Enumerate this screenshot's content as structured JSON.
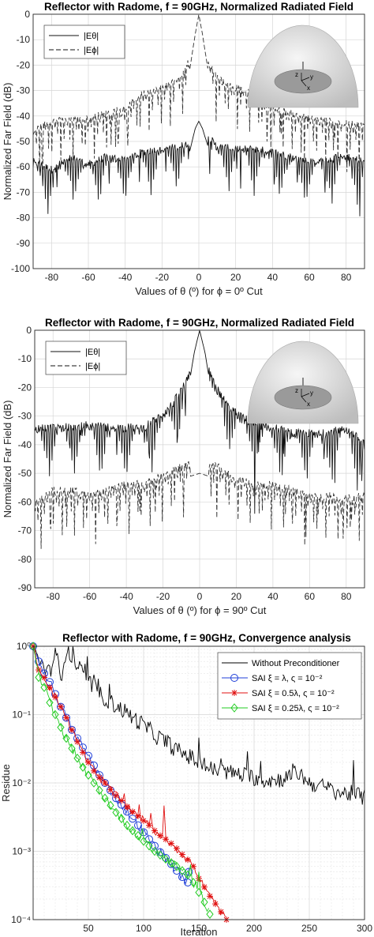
{
  "chart_data": [
    {
      "type": "line",
      "title": "Reflector with Radome, f = 90GHz, Normalized Radiated Field",
      "xlabel": "Values of θ (º) for ϕ = 0º Cut",
      "ylabel": "Normalized Far Field (dB)",
      "xlim": [
        -90,
        90
      ],
      "ylim": [
        -100,
        0
      ],
      "xticks": [
        -80,
        -60,
        -40,
        -20,
        0,
        20,
        40,
        60,
        80
      ],
      "yticks": [
        0,
        -10,
        -20,
        -30,
        -40,
        -50,
        -60,
        -70,
        -80,
        -90,
        -100
      ],
      "grid": true,
      "legend_position": "top-left",
      "inset": {
        "labels": [
          "z",
          "y",
          "x"
        ]
      },
      "series": [
        {
          "name": "|Eθ|",
          "style": "solid",
          "x": [
            -90,
            -80,
            -70,
            -60,
            -50,
            -40,
            -30,
            -20,
            -10,
            -5,
            -2,
            0,
            2,
            5,
            10,
            20,
            30,
            40,
            50,
            60,
            70,
            80,
            90
          ],
          "y": [
            -62,
            -65,
            -60,
            -63,
            -60,
            -61,
            -58,
            -57,
            -56,
            -54,
            -45,
            -42,
            -45,
            -52,
            -56,
            -57,
            -57,
            -58,
            -60,
            -62,
            -61,
            -60,
            -62
          ]
        },
        {
          "name": "|Eϕ|",
          "style": "dashed",
          "x": [
            -90,
            -80,
            -70,
            -60,
            -50,
            -40,
            -30,
            -20,
            -10,
            -5,
            -2,
            0,
            2,
            5,
            10,
            20,
            30,
            40,
            50,
            60,
            70,
            80,
            90
          ],
          "y": [
            -50,
            -46,
            -46,
            -45,
            -43,
            -41,
            -35,
            -33,
            -29,
            -22,
            -8,
            0,
            -8,
            -22,
            -29,
            -33,
            -36,
            -41,
            -43,
            -45,
            -46,
            -47,
            -48
          ]
        }
      ]
    },
    {
      "type": "line",
      "title": "Reflector with Radome, f = 90GHz, Normalized Radiated Field",
      "xlabel": "Values of θ (º) for ϕ = 90º Cut",
      "ylabel": "Normalized Far Field (dB)",
      "xlim": [
        -90,
        90
      ],
      "ylim": [
        -90,
        0
      ],
      "xticks": [
        -80,
        -60,
        -40,
        -20,
        0,
        20,
        40,
        60,
        80
      ],
      "yticks": [
        0,
        -10,
        -20,
        -30,
        -40,
        -50,
        -60,
        -70,
        -80,
        -90
      ],
      "grid": true,
      "legend_position": "top-left",
      "inset": {
        "labels": [
          "z",
          "y",
          "x"
        ]
      },
      "series": [
        {
          "name": "|Eθ|",
          "style": "solid",
          "x": [
            -90,
            -80,
            -70,
            -60,
            -50,
            -40,
            -30,
            -20,
            -15,
            -10,
            -6,
            -3,
            0,
            3,
            6,
            10,
            15,
            20,
            30,
            40,
            50,
            60,
            70,
            80,
            90
          ],
          "y": [
            -38,
            -38,
            -38,
            -37,
            -38,
            -38,
            -38,
            -33,
            -30,
            -25,
            -20,
            -8,
            0,
            -8,
            -20,
            -25,
            -30,
            -33,
            -37,
            -38,
            -40,
            -40,
            -40,
            -38,
            -44
          ]
        },
        {
          "name": "|Eϕ|",
          "style": "dashed",
          "x": [
            -90,
            -80,
            -70,
            -60,
            -50,
            -40,
            -30,
            -20,
            -10,
            0,
            10,
            20,
            30,
            40,
            50,
            60,
            70,
            80,
            90
          ],
          "y": [
            -65,
            -60,
            -60,
            -62,
            -60,
            -58,
            -58,
            -55,
            -52,
            -50,
            -52,
            -56,
            -58,
            -58,
            -60,
            -62,
            -62,
            -63,
            -62
          ]
        }
      ]
    },
    {
      "type": "line",
      "title": "Reflector with Radome, f = 90GHz, Convergence analysis",
      "xlabel": "Iteration",
      "ylabel": "Residue",
      "log_y": true,
      "xlim": [
        0,
        300
      ],
      "ylim": [
        0.0001,
        1
      ],
      "xticks": [
        50,
        100,
        150,
        200,
        250,
        300
      ],
      "ytick_labels": [
        "10⁻⁴",
        "10⁻³",
        "10⁻²",
        "10⁻¹",
        "10⁰"
      ],
      "grid": true,
      "legend_position": "top-right",
      "series": [
        {
          "name": "Without Preconditioner",
          "color": "#000000",
          "marker": "none",
          "x": [
            0,
            5,
            10,
            15,
            20,
            25,
            30,
            40,
            50,
            60,
            70,
            80,
            90,
            100,
            110,
            120,
            130,
            140,
            150,
            160,
            170,
            180,
            190,
            200,
            210,
            220,
            230,
            240,
            250,
            260,
            270,
            280,
            290,
            300
          ],
          "y": [
            1,
            0.6,
            0.5,
            0.4,
            0.8,
            0.3,
            0.9,
            0.5,
            0.3,
            0.2,
            0.15,
            0.12,
            0.09,
            0.07,
            0.05,
            0.04,
            0.03,
            0.025,
            0.02,
            0.016,
            0.015,
            0.014,
            0.013,
            0.012,
            0.011,
            0.011,
            0.012,
            0.014,
            0.01,
            0.009,
            0.008,
            0.007,
            0.007,
            0.006
          ]
        },
        {
          "name": "SAI ξ = λ, ς = 10⁻²",
          "color": "#1f3fd8",
          "marker": "circle",
          "x": [
            0,
            5,
            10,
            15,
            20,
            25,
            30,
            35,
            40,
            45,
            50,
            55,
            60,
            65,
            70,
            75,
            80,
            85,
            90,
            95,
            100,
            105,
            110,
            115,
            120,
            125,
            130,
            135,
            140,
            141
          ],
          "y": [
            1,
            0.6,
            0.4,
            0.3,
            0.2,
            0.13,
            0.09,
            0.06,
            0.045,
            0.033,
            0.025,
            0.018,
            0.013,
            0.01,
            0.0078,
            0.006,
            0.0048,
            0.0038,
            0.003,
            0.0024,
            0.0019,
            0.0015,
            0.0012,
            0.00097,
            0.0008,
            0.00065,
            0.00052,
            0.00042,
            0.00035,
            0.0005
          ]
        },
        {
          "name": "SAI ξ = 0.5λ, ς = 10⁻²",
          "color": "#e01010",
          "marker": "asterisk",
          "x": [
            0,
            5,
            10,
            15,
            20,
            25,
            30,
            35,
            40,
            45,
            50,
            55,
            60,
            65,
            70,
            75,
            80,
            85,
            90,
            95,
            100,
            105,
            110,
            115,
            120,
            125,
            130,
            135,
            140,
            145,
            150,
            155,
            160,
            165,
            170,
            175
          ],
          "y": [
            1,
            0.45,
            0.35,
            0.25,
            0.18,
            0.13,
            0.09,
            0.06,
            0.04,
            0.028,
            0.02,
            0.015,
            0.012,
            0.01,
            0.008,
            0.0065,
            0.0055,
            0.0045,
            0.0038,
            0.0033,
            0.0028,
            0.0024,
            0.002,
            0.0017,
            0.0015,
            0.0013,
            0.0011,
            0.0009,
            0.00075,
            0.0006,
            0.0004,
            0.0003,
            0.00022,
            0.00017,
            0.00013,
            0.0001
          ]
        },
        {
          "name": "SAI ξ = 0.25λ, ς = 10⁻²",
          "color": "#22cc22",
          "marker": "diamond",
          "x": [
            0,
            5,
            10,
            15,
            20,
            25,
            30,
            35,
            40,
            45,
            50,
            55,
            60,
            65,
            70,
            75,
            80,
            85,
            90,
            95,
            100,
            105,
            110,
            115,
            120,
            125,
            130,
            135,
            140,
            145,
            150,
            155,
            160
          ],
          "y": [
            1,
            0.35,
            0.25,
            0.15,
            0.1,
            0.065,
            0.045,
            0.032,
            0.023,
            0.017,
            0.013,
            0.01,
            0.0078,
            0.006,
            0.0047,
            0.0037,
            0.003,
            0.0024,
            0.002,
            0.0017,
            0.0014,
            0.0012,
            0.001,
            0.00088,
            0.00077,
            0.00068,
            0.0006,
            0.00052,
            0.00045,
            0.00035,
            0.00025,
            0.00018,
            0.00012
          ]
        }
      ]
    }
  ]
}
